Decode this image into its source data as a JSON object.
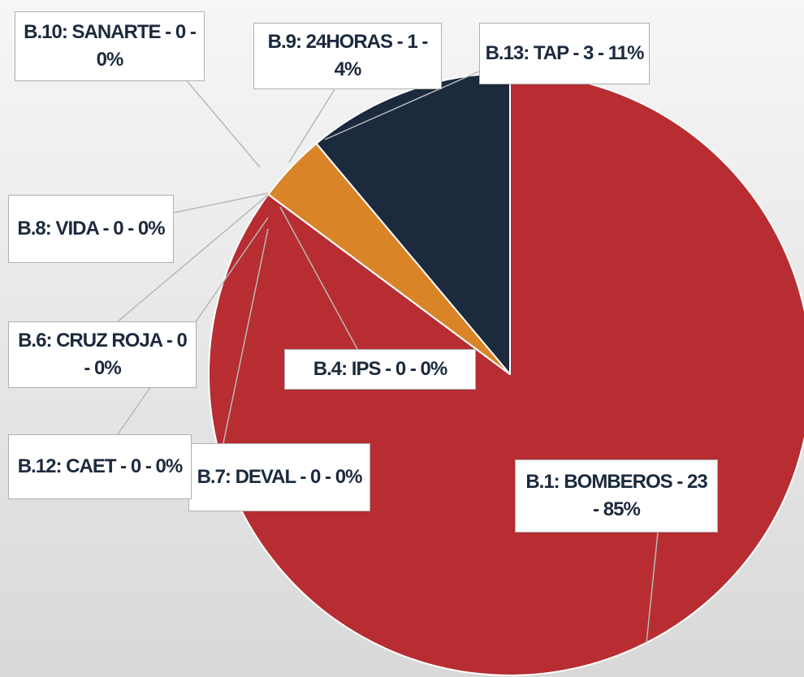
{
  "chart_data": {
    "type": "pie",
    "values": [
      23,
      0,
      0,
      0,
      0,
      0,
      0,
      1,
      3
    ],
    "value_labels": [
      "B.1: BOMBEROS - 23 - 85%",
      "B.4: IPS - 0 - 0%",
      "B.7: DEVAL - 0 - 0%",
      "B.12: CAET - 0 - 0%",
      "B.6: CRUZ ROJA - 0 - 0%",
      "B.8: VIDA - 0 - 0%",
      "B.10: SANARTE - 0 - 0%",
      "B.9: 24HORAS - 1 - 4%",
      "B.13: TAP - 3 - 11%"
    ],
    "colors": [
      "#b72d31",
      "#4472c4",
      "#a5a5a5",
      "#ffc000",
      "#5b9bd5",
      "#70ad47",
      "#264478",
      "#d98427",
      "#1b2a3d"
    ]
  }
}
